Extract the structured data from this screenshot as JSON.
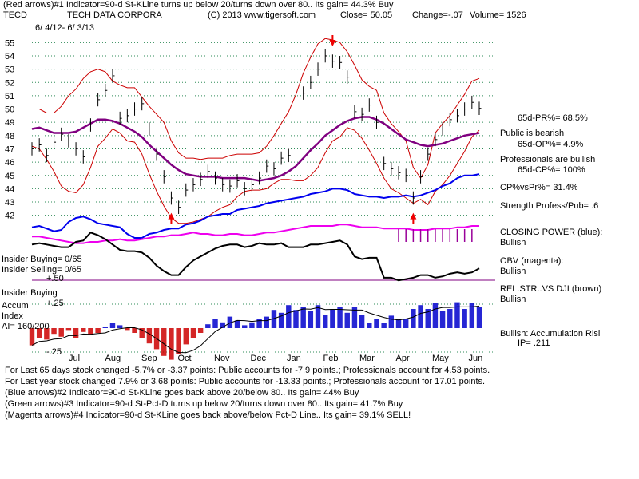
{
  "header": {
    "line1": "(Red arrows)#1 Indicator=90-d St-KLine turns up below 20/turns down over 80.. Its gain= 44.3% Buy",
    "symbol": "TECD",
    "company": "TECH DATA CORPORA",
    "copyright": "(C) 2013 www.tigersoft.com",
    "close": "Close=  50.05",
    "change": "Change=-.07",
    "volume": "Volume= 1526",
    "date_range": "6/ 4/12- 6/ 3/13"
  },
  "right_panel": {
    "pr": "65d-PR%= 68.5%",
    "public": "Public is bearish",
    "op": "65d-OP%= 4.9%",
    "professionals": "Professionals are bullish",
    "cp": "65d-CP%= 100%",
    "cpvspr": "CP%vsPr%=  31.4%",
    "strength": "Strength Profess/Pub= .6",
    "closing_power": "CLOSING POWER (blue):",
    "closing_power_val": "Bullish",
    "obv": "OBV (magenta):",
    "obv_val": "Bullish",
    "relstr": "REL.STR..VS DJI (brown)",
    "relstr_val": "Bullish",
    "accum": "Bullish: Accumulation Risi",
    "ip": "IP=  .211"
  },
  "left_labels": {
    "insider_buying_ratio": "Insider Buying= 0/65",
    "insider_selling_ratio": "Insider Selling= 0/65",
    "insider_buying": "Insider Buying",
    "accum": "Accum",
    "index": "Index",
    "ai": "AI= 160/200",
    "plus50": "+.50",
    "plus25": "+.25",
    "minus25": "-.25"
  },
  "footer": {
    "line1": "For Last 65 days stock changed -5.7% or -3.37 points:  Public accounts for -7.9 points.;  Professionals account for  4.53 points.",
    "line2": "For Last year stock changed  7.9% or  3.68 points:  Public accounts for -13.33 points.;  Professionals account for  17.01 points.",
    "line3": "(Blue arrows)#2 Indicator=90-d St-KLine goes back above 20/below 80.. Its gain= 44% Buy",
    "line4": "(Green arrows)#3 Indicator=90-d St-Pct-D turns up below 20/turns down over 80.. Its gain= 41.7% Buy",
    "line5": "(Magenta arrows)#4 Indicator=90-d St-KLine goes back above/below Pct-D Line.. Its gain= 39.1% SELL!"
  },
  "colors": {
    "price": "#000000",
    "band": "#cc0000",
    "ma": "#800080",
    "closing_power": "#0000ee",
    "obv": "#ee00ee",
    "relstr": "#000000",
    "grid": "#2e8b57",
    "accum_pos": "#0000cc",
    "accum_neg": "#cc0000",
    "arrow_red": "#ee0000",
    "arrow_magenta": "#990099"
  },
  "chart_data": {
    "type": "line",
    "title": "TECD TECH DATA CORPORA daily price with Bollinger bands and indicators",
    "x_labels": [
      "Jul",
      "Aug",
      "Sep",
      "Oct",
      "Nov",
      "Dec",
      "Jan",
      "Feb",
      "Mar",
      "Apr",
      "May",
      "Jun"
    ],
    "y_ticks": [
      42,
      43,
      44,
      45,
      46,
      47,
      48,
      49,
      50,
      51,
      52,
      53,
      54,
      55
    ],
    "ylim": [
      41.5,
      55.5
    ],
    "price": [
      47,
      47.3,
      46.5,
      47.5,
      48.1,
      47.6,
      47,
      46.4,
      48.8,
      50.7,
      51.4,
      52.5,
      49.3,
      49.5,
      50,
      50.4,
      48.5,
      46.6,
      44.9,
      43.3,
      42.6,
      43.9,
      44.3,
      44.7,
      45.3,
      44.8,
      44.3,
      44.2,
      44.6,
      44,
      44.3,
      44.8,
      45.7,
      45.5,
      46.3,
      46.5,
      48.8,
      51.2,
      52,
      53,
      54,
      53.6,
      53.5,
      52.4,
      49.8,
      49.6,
      50.3,
      49,
      45.9,
      45.5,
      45.2,
      45,
      43.3,
      44.9,
      46.6,
      47.7,
      48.5,
      49.2,
      49.5,
      50,
      50.5,
      50.05
    ],
    "upper_band": [
      50,
      50,
      49.7,
      49.7,
      50.2,
      51,
      51.5,
      52.3,
      52.8,
      53,
      52.8,
      52.1,
      51.8,
      51.6,
      51.6,
      50.9,
      50.2,
      49.6,
      49,
      47.6,
      46.7,
      46.3,
      46.3,
      46.2,
      46.3,
      46.3,
      46.3,
      46.5,
      46.6,
      46.6,
      46.6,
      46.7,
      47.2,
      48,
      48.9,
      49.8,
      51.1,
      52.7,
      53.9,
      54.9,
      55.3,
      55.2,
      55,
      54.3,
      53.3,
      52.2,
      51.7,
      51.4,
      49.7,
      48.9,
      48.3,
      47.6,
      45.6,
      44.8,
      45.8,
      48.2,
      48.9,
      49.5,
      50.3,
      51.1,
      52.1,
      52.3
    ],
    "lower_band": [
      47.2,
      47,
      46.2,
      45.3,
      44.2,
      43.8,
      43.7,
      44.3,
      45.6,
      47.2,
      47.8,
      48.5,
      48.2,
      47.6,
      47.5,
      46.6,
      45.1,
      43.8,
      42.7,
      41.8,
      41.4,
      41.4,
      41.5,
      41.7,
      41.9,
      42.3,
      42.6,
      42.8,
      43.4,
      43.8,
      43.9,
      43.9,
      44,
      44.4,
      44.7,
      44.7,
      44.6,
      44.6,
      45,
      45.6,
      46.7,
      47.6,
      47.9,
      48.6,
      48.4,
      47.8,
      46.9,
      45.9,
      44.8,
      44,
      43.7,
      43.3,
      42.9,
      43.2,
      42.8,
      43.8,
      44.3,
      45,
      45.9,
      46.8,
      47.9,
      48.4
    ],
    "moving_avg": [
      48.5,
      48.6,
      48.4,
      48.2,
      48.2,
      48.2,
      48.3,
      48.6,
      48.9,
      49.2,
      49.2,
      49.1,
      48.9,
      48.6,
      48.3,
      47.9,
      47.3,
      46.8,
      46.3,
      45.8,
      45.4,
      45.1,
      45,
      44.9,
      44.9,
      44.9,
      44.8,
      44.8,
      44.8,
      44.8,
      44.7,
      44.6,
      44.7,
      44.8,
      45,
      45.3,
      45.7,
      46.3,
      46.9,
      47.4,
      48,
      48.4,
      48.8,
      49.1,
      49.3,
      49.4,
      49.4,
      49.2,
      48.9,
      48.5,
      48.1,
      47.7,
      47.5,
      47.3,
      47.2,
      47.3,
      47.4,
      47.6,
      47.8,
      48,
      48.1,
      48.2
    ],
    "closing_power": [
      41.1,
      41.2,
      41,
      40.8,
      40.9,
      41.5,
      41.8,
      41.9,
      41.7,
      41.4,
      41.3,
      41.2,
      41.1,
      40.6,
      40.3,
      40.3,
      40.6,
      40.7,
      40.9,
      41,
      41,
      41.3,
      41.4,
      41.6,
      41.9,
      42,
      42.1,
      42.1,
      42.4,
      42.5,
      42.6,
      42.7,
      42.9,
      43,
      43.1,
      43.2,
      43.3,
      43.4,
      43.6,
      43.7,
      43.8,
      44,
      44,
      43.9,
      43.6,
      43.5,
      43.4,
      43.4,
      43.3,
      43.4,
      43.4,
      43.5,
      43.4,
      43.5,
      43.7,
      43.9,
      44.2,
      44.4,
      44.8,
      45,
      45,
      45.1
    ],
    "obv": [
      40.4,
      40.4,
      40.3,
      40.2,
      40.1,
      40,
      39.9,
      39.9,
      40,
      40,
      40.1,
      40.1,
      40.2,
      40.1,
      40.1,
      40.2,
      40.3,
      40.4,
      40.4,
      40.5,
      40.5,
      40.6,
      40.7,
      40.6,
      40.6,
      40.5,
      40.5,
      40.6,
      40.6,
      40.5,
      40.5,
      40.6,
      40.7,
      40.7,
      40.8,
      40.9,
      41,
      41.1,
      41.2,
      41.2,
      41.2,
      41.2,
      41.3,
      41.3,
      41.2,
      41.1,
      41.1,
      41.1,
      41,
      41,
      41,
      41,
      40.9,
      40.9,
      40.9,
      41,
      41,
      41,
      41.1,
      41.1,
      41.2,
      41.2
    ],
    "relstr": [
      39.8,
      39.9,
      39.8,
      39.7,
      39.6,
      39.6,
      40,
      40.1,
      40.7,
      40.5,
      40.2,
      39.8,
      39.4,
      39.3,
      39.3,
      39.2,
      38.8,
      38.2,
      37.8,
      37.5,
      37.5,
      38.1,
      38.6,
      38.9,
      39.2,
      39.5,
      39.7,
      39.8,
      39.8,
      39.6,
      39.7,
      39.9,
      39.8,
      39.8,
      39.9,
      39.6,
      39.6,
      39.6,
      39.8,
      39.8,
      39.9,
      40,
      40.1,
      39.8,
      38.9,
      38.7,
      38.8,
      38.8,
      37.3,
      37.3,
      37.1,
      37.2,
      37.3,
      37.5,
      37.5,
      37.3,
      37.4,
      37.6,
      37.7,
      37.6,
      37.7,
      38
    ],
    "accum_index": [
      -0.18,
      -0.1,
      -0.12,
      -0.06,
      -0.09,
      -0.02,
      -0.1,
      -0.04,
      -0.07,
      -0.05,
      0.01,
      0.05,
      0.03,
      -0.02,
      -0.05,
      -0.1,
      -0.16,
      -0.22,
      -0.29,
      -0.33,
      -0.27,
      -0.17,
      -0.1,
      -0.05,
      0.04,
      0.1,
      0.06,
      0.12,
      0.08,
      0.03,
      0.06,
      0.1,
      0.12,
      0.19,
      0.16,
      0.24,
      0.19,
      0.22,
      0.18,
      0.24,
      0.14,
      0.2,
      0.22,
      0.16,
      0.22,
      0.14,
      0.05,
      0.1,
      0.05,
      0.13,
      0.1,
      0.1,
      0.2,
      0.24,
      0.2,
      0.26,
      0.18,
      0.2,
      0.27,
      0.2,
      0.26,
      0.22
    ]
  }
}
